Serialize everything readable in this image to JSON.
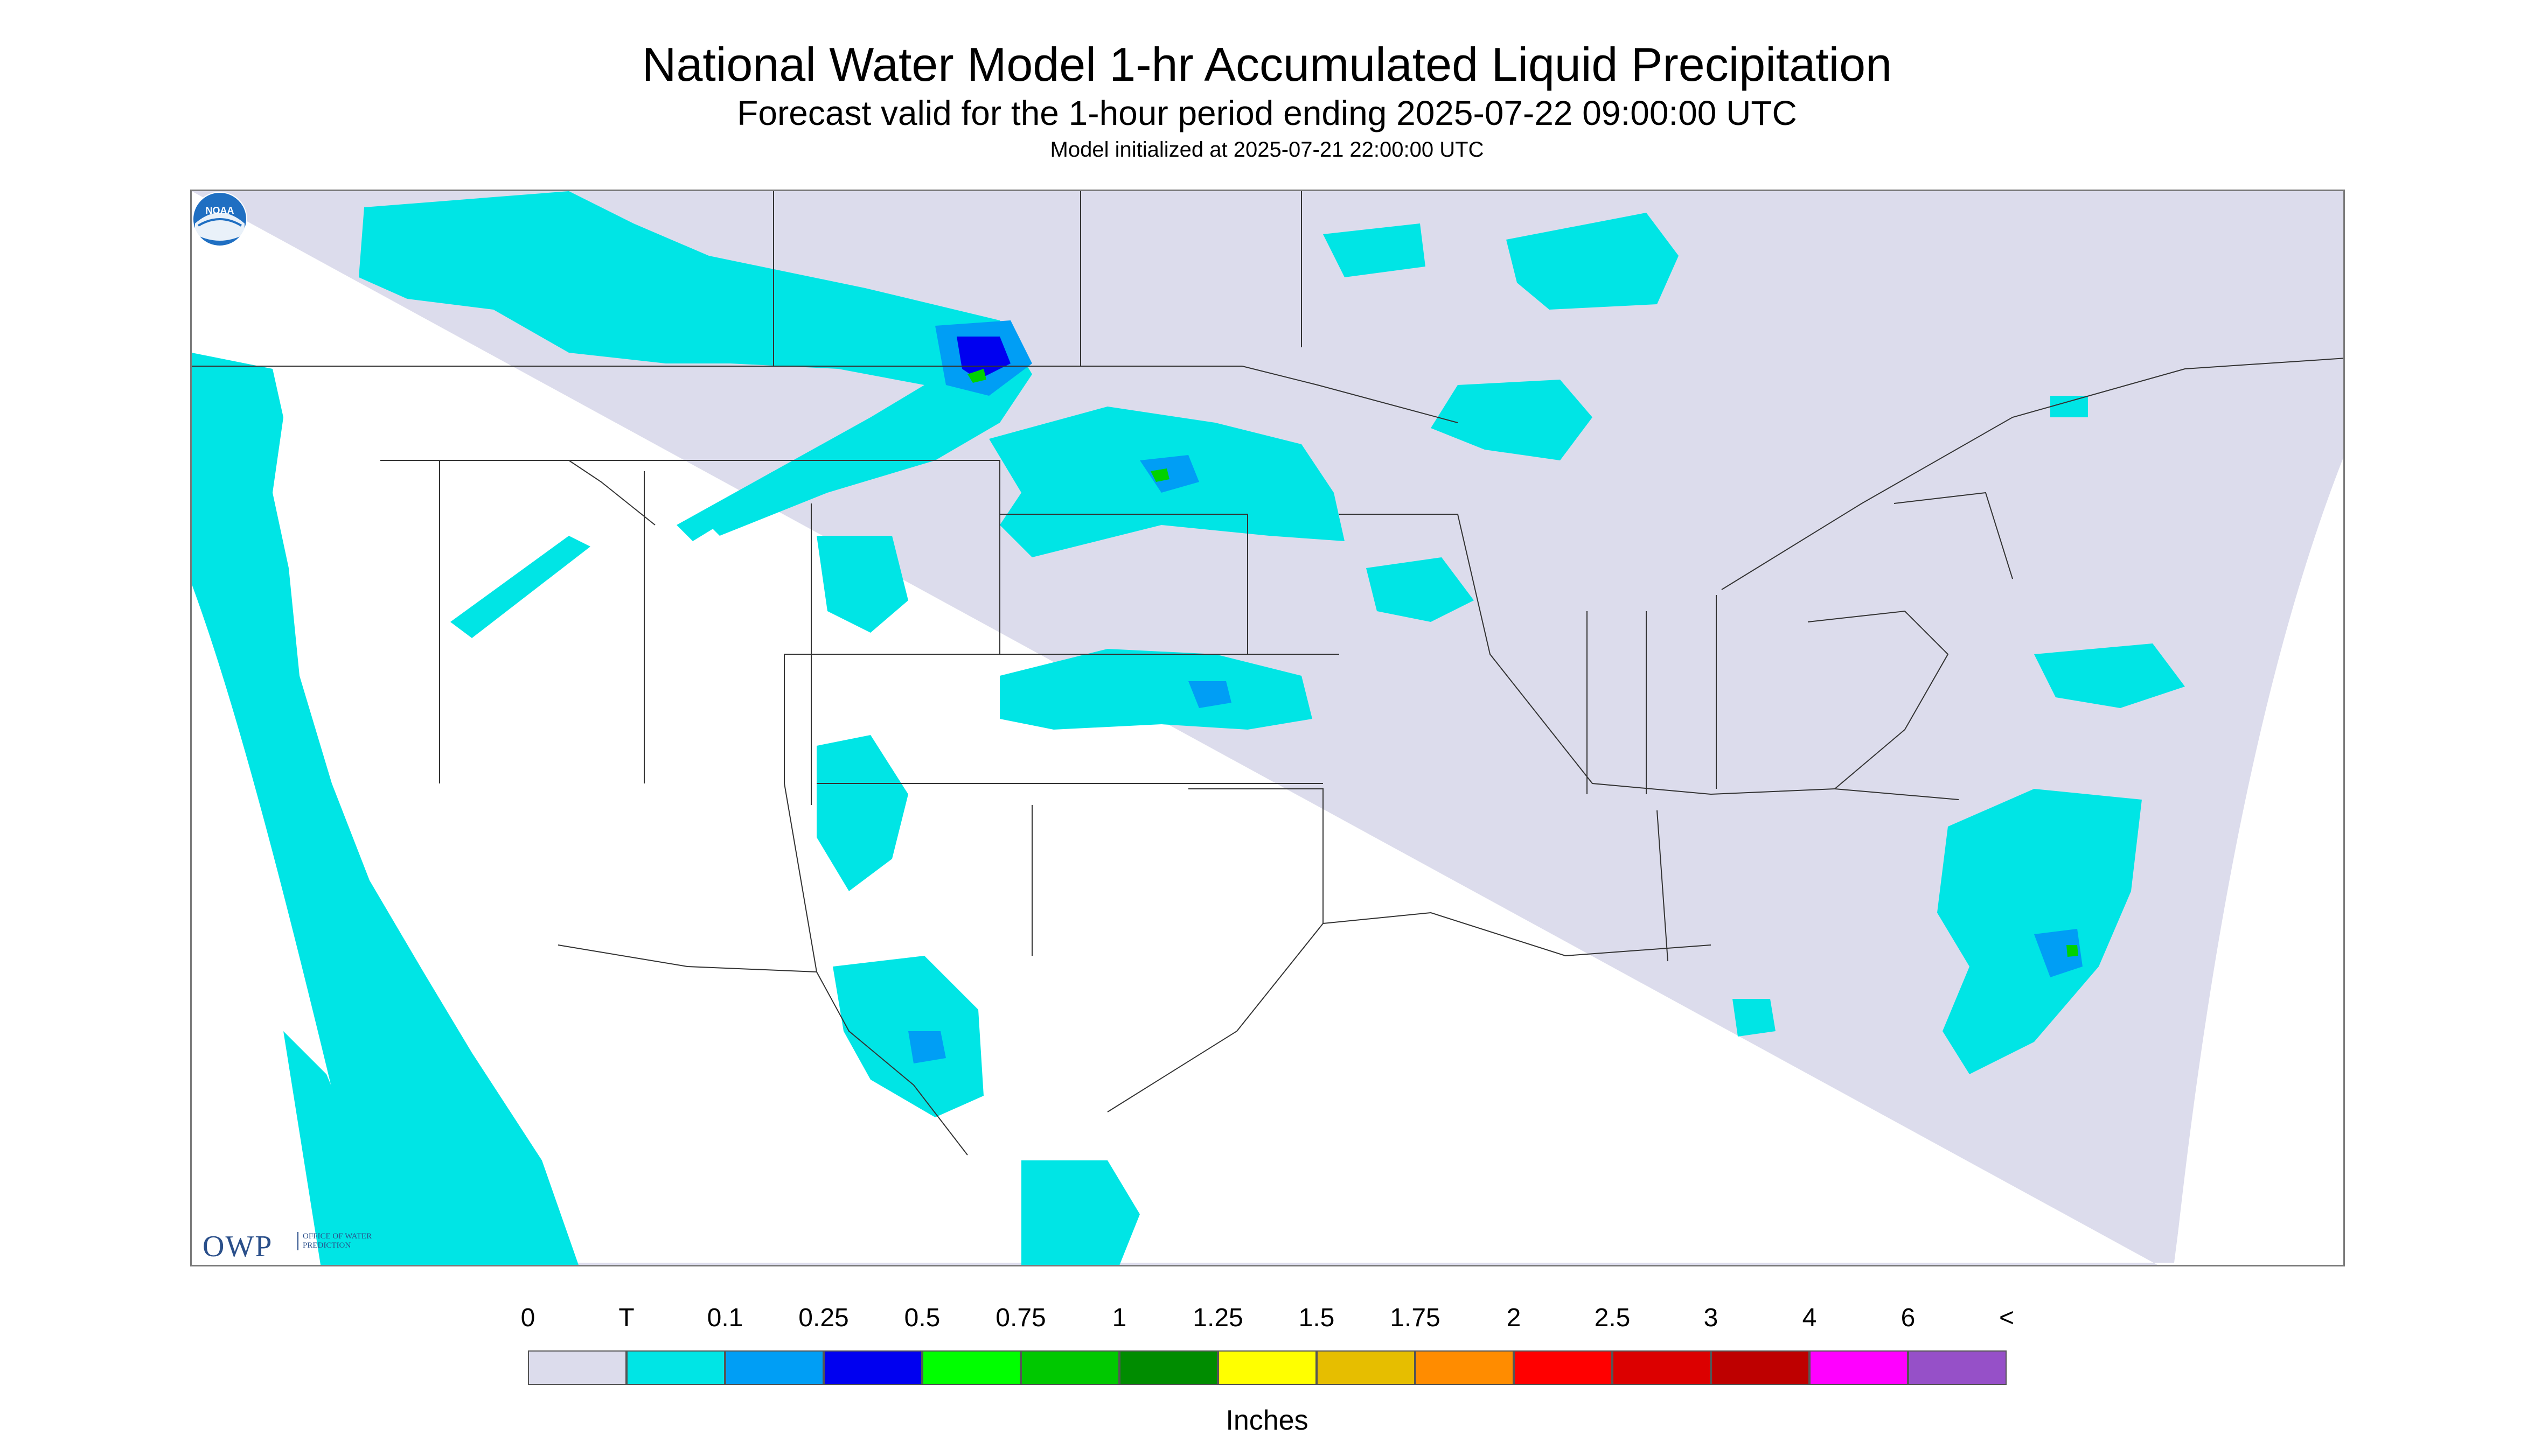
{
  "header": {
    "title": "National Water Model 1-hr Accumulated Liquid Precipitation",
    "subtitle": "Forecast valid for the 1-hour period ending 2025-07-22 09:00:00 UTC",
    "init": "Model initialized at 2025-07-21 22:00:00 UTC"
  },
  "map": {
    "background_color": "#dcdcec",
    "outside_color": "#ffffff",
    "border_color": "#333333",
    "precip_colors": {
      "trace": "#00e5e5",
      "light": "#009ef5",
      "moderate": "#0000f0",
      "heavy_green": "#00d200"
    }
  },
  "logos": {
    "owp_mark": "OWP",
    "owp_text": "OFFICE OF WATER PREDICTION",
    "noaa_text": "NOAA"
  },
  "legend": {
    "tick_labels": [
      "0",
      "T",
      "0.1",
      "0.25",
      "0.5",
      "0.75",
      "1",
      "1.25",
      "1.5",
      "1.75",
      "2",
      "2.5",
      "3",
      "4",
      "6",
      "<"
    ],
    "colors": [
      "#dcdcec",
      "#00e5e5",
      "#009ef5",
      "#0000f0",
      "#00ff00",
      "#00c800",
      "#008c00",
      "#ffff00",
      "#e6be00",
      "#ff8c00",
      "#ff0000",
      "#dc0000",
      "#be0000",
      "#ff00ff",
      "#9650c8"
    ],
    "units_label": "Inches"
  }
}
